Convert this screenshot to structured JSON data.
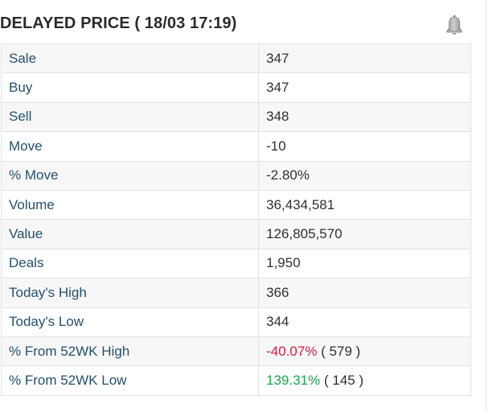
{
  "header": {
    "title": "DELAYED PRICE ( 18/03 17:19)",
    "bell_icon": "bell-icon"
  },
  "colors": {
    "label": "#24506c",
    "value": "#303030",
    "negative": "#e0183d",
    "positive": "#19a84a",
    "row_alt": "#f7f7f7",
    "border": "#e3e3e3"
  },
  "rows": [
    {
      "label": "Sale",
      "value": "347"
    },
    {
      "label": "Buy",
      "value": "347"
    },
    {
      "label": "Sell",
      "value": "348"
    },
    {
      "label": "Move",
      "value": "-10"
    },
    {
      "label": "% Move",
      "value": "-2.80%"
    },
    {
      "label": "Volume",
      "value": "36,434,581"
    },
    {
      "label": "Value",
      "value": "126,805,570"
    },
    {
      "label": "Deals",
      "value": "1,950"
    },
    {
      "label": "Today's High",
      "value": "366"
    },
    {
      "label": "Today's Low",
      "value": "344"
    },
    {
      "label": "% From 52WK High",
      "value": "-40.07%",
      "extra": "( 579 )"
    },
    {
      "label": "% From 52WK Low",
      "value": "139.31%",
      "extra": "( 145 )"
    }
  ]
}
